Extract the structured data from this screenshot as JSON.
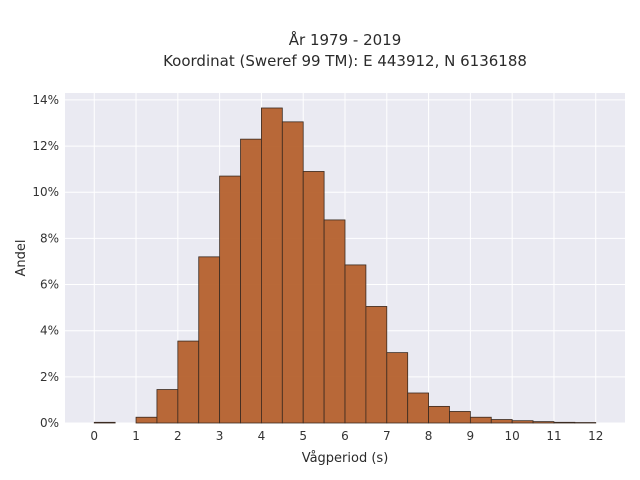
{
  "chart_data": {
    "type": "bar",
    "title_lines": [
      "År 1979 - 2019",
      "Koordinat (Sweref 99 TM): E 443912, N 6136188"
    ],
    "xlabel": "Vågperiod (s)",
    "ylabel": "Andel",
    "xlim": [
      -0.7,
      12.7
    ],
    "ylim": [
      0,
      14.3
    ],
    "x_ticks": [
      "0",
      "1",
      "2",
      "3",
      "4",
      "5",
      "6",
      "7",
      "8",
      "9",
      "10",
      "11",
      "12"
    ],
    "y_ticks": [
      "0%",
      "2%",
      "4%",
      "6%",
      "8%",
      "10%",
      "12%",
      "14%"
    ],
    "bin_width": 0.5,
    "bins": [
      {
        "start": 0.0,
        "value": 0.03
      },
      {
        "start": 0.5,
        "value": 0.0
      },
      {
        "start": 1.0,
        "value": 0.25
      },
      {
        "start": 1.5,
        "value": 1.45
      },
      {
        "start": 2.0,
        "value": 3.55
      },
      {
        "start": 2.5,
        "value": 7.2
      },
      {
        "start": 3.0,
        "value": 10.7
      },
      {
        "start": 3.5,
        "value": 12.3
      },
      {
        "start": 4.0,
        "value": 13.65
      },
      {
        "start": 4.5,
        "value": 13.05
      },
      {
        "start": 5.0,
        "value": 10.9
      },
      {
        "start": 5.5,
        "value": 8.8
      },
      {
        "start": 6.0,
        "value": 6.85
      },
      {
        "start": 6.5,
        "value": 5.05
      },
      {
        "start": 7.0,
        "value": 3.05
      },
      {
        "start": 7.5,
        "value": 1.3
      },
      {
        "start": 8.0,
        "value": 0.72
      },
      {
        "start": 8.5,
        "value": 0.5
      },
      {
        "start": 9.0,
        "value": 0.25
      },
      {
        "start": 9.5,
        "value": 0.15
      },
      {
        "start": 10.0,
        "value": 0.1
      },
      {
        "start": 10.5,
        "value": 0.06
      },
      {
        "start": 11.0,
        "value": 0.03
      },
      {
        "start": 11.5,
        "value": 0.02
      }
    ],
    "grid": true,
    "colors": {
      "bar": "#b5612d",
      "bar_edge": "#3a2a20",
      "plot_bg": "#eaeaf2",
      "grid": "#ffffff"
    }
  }
}
